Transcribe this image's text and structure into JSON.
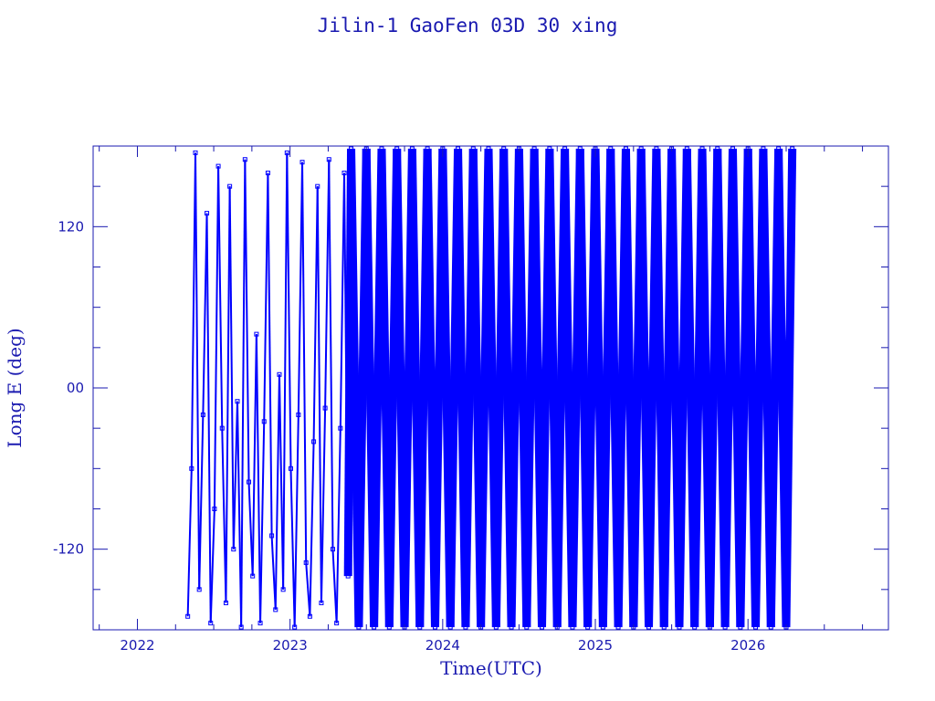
{
  "chart_data": {
    "type": "line",
    "title": "Jilin-1 GaoFen 03D 30 xing",
    "xlabel": "Time(UTC)",
    "ylabel": "Long E (deg)",
    "xlim": [
      2021.71,
      2026.92
    ],
    "ylim": [
      -180,
      180
    ],
    "x_ticks": [
      2022,
      2023,
      2024,
      2025,
      2026
    ],
    "x_tick_labels": [
      "2022",
      "2023",
      "2024",
      "2025",
      "2026"
    ],
    "y_ticks": [
      120,
      0,
      -120
    ],
    "y_tick_labels": [
      "120",
      "00",
      "-120"
    ],
    "grid": false,
    "color": "#0000ff",
    "marker": "square",
    "points": [
      [
        2022.33,
        -170
      ],
      [
        2022.355,
        -60
      ],
      [
        2022.38,
        175
      ],
      [
        2022.405,
        -150
      ],
      [
        2022.43,
        -20
      ],
      [
        2022.455,
        130
      ],
      [
        2022.48,
        -175
      ],
      [
        2022.505,
        -90
      ],
      [
        2022.53,
        165
      ],
      [
        2022.555,
        -30
      ],
      [
        2022.58,
        -160
      ],
      [
        2022.605,
        150
      ],
      [
        2022.63,
        -120
      ],
      [
        2022.655,
        -10
      ],
      [
        2022.68,
        -178
      ],
      [
        2022.705,
        170
      ],
      [
        2022.73,
        -70
      ],
      [
        2022.755,
        -140
      ],
      [
        2022.78,
        40
      ],
      [
        2022.805,
        -175
      ],
      [
        2022.83,
        -25
      ],
      [
        2022.855,
        160
      ],
      [
        2022.88,
        -110
      ],
      [
        2022.905,
        -165
      ],
      [
        2022.93,
        10
      ],
      [
        2022.955,
        -150
      ],
      [
        2022.98,
        175
      ],
      [
        2023.005,
        -60
      ],
      [
        2023.03,
        -178
      ],
      [
        2023.055,
        -20
      ],
      [
        2023.08,
        168
      ],
      [
        2023.105,
        -130
      ],
      [
        2023.13,
        -170
      ],
      [
        2023.155,
        -40
      ],
      [
        2023.18,
        150
      ],
      [
        2023.205,
        -160
      ],
      [
        2023.23,
        -15
      ],
      [
        2023.255,
        170
      ],
      [
        2023.28,
        -120
      ],
      [
        2023.305,
        -175
      ],
      [
        2023.33,
        -30
      ],
      [
        2023.355,
        160
      ],
      [
        2023.38,
        -140
      ],
      [
        2023.4,
        178
      ],
      [
        2023.45,
        -178
      ],
      [
        2023.5,
        178
      ],
      [
        2023.55,
        -178
      ],
      [
        2023.6,
        178
      ],
      [
        2023.65,
        -178
      ],
      [
        2023.7,
        178
      ],
      [
        2023.75,
        -178
      ],
      [
        2023.8,
        178
      ],
      [
        2023.85,
        -178
      ],
      [
        2023.9,
        178
      ],
      [
        2023.95,
        -178
      ],
      [
        2024.0,
        178
      ],
      [
        2024.05,
        -178
      ],
      [
        2024.1,
        178
      ],
      [
        2024.15,
        -178
      ],
      [
        2024.2,
        178
      ],
      [
        2024.25,
        -178
      ],
      [
        2024.3,
        178
      ],
      [
        2024.35,
        -178
      ],
      [
        2024.4,
        178
      ],
      [
        2024.45,
        -178
      ],
      [
        2024.5,
        178
      ],
      [
        2024.55,
        -178
      ],
      [
        2024.6,
        178
      ],
      [
        2024.65,
        -178
      ],
      [
        2024.7,
        178
      ],
      [
        2024.75,
        -178
      ],
      [
        2024.8,
        178
      ],
      [
        2024.85,
        -178
      ],
      [
        2024.9,
        178
      ],
      [
        2024.95,
        -178
      ],
      [
        2025.0,
        178
      ],
      [
        2025.05,
        -178
      ],
      [
        2025.1,
        178
      ],
      [
        2025.15,
        -178
      ],
      [
        2025.2,
        178
      ],
      [
        2025.25,
        -178
      ],
      [
        2025.3,
        178
      ],
      [
        2025.35,
        -178
      ],
      [
        2025.4,
        178
      ],
      [
        2025.45,
        -178
      ],
      [
        2025.5,
        178
      ],
      [
        2025.55,
        -178
      ],
      [
        2025.6,
        178
      ],
      [
        2025.65,
        -178
      ],
      [
        2025.7,
        178
      ],
      [
        2025.75,
        -178
      ],
      [
        2025.8,
        178
      ],
      [
        2025.85,
        -178
      ],
      [
        2025.9,
        178
      ],
      [
        2025.95,
        -178
      ],
      [
        2026.0,
        178
      ],
      [
        2026.05,
        -178
      ],
      [
        2026.1,
        178
      ],
      [
        2026.15,
        -178
      ],
      [
        2026.2,
        178
      ],
      [
        2026.25,
        -178
      ],
      [
        2026.29,
        178
      ]
    ]
  }
}
